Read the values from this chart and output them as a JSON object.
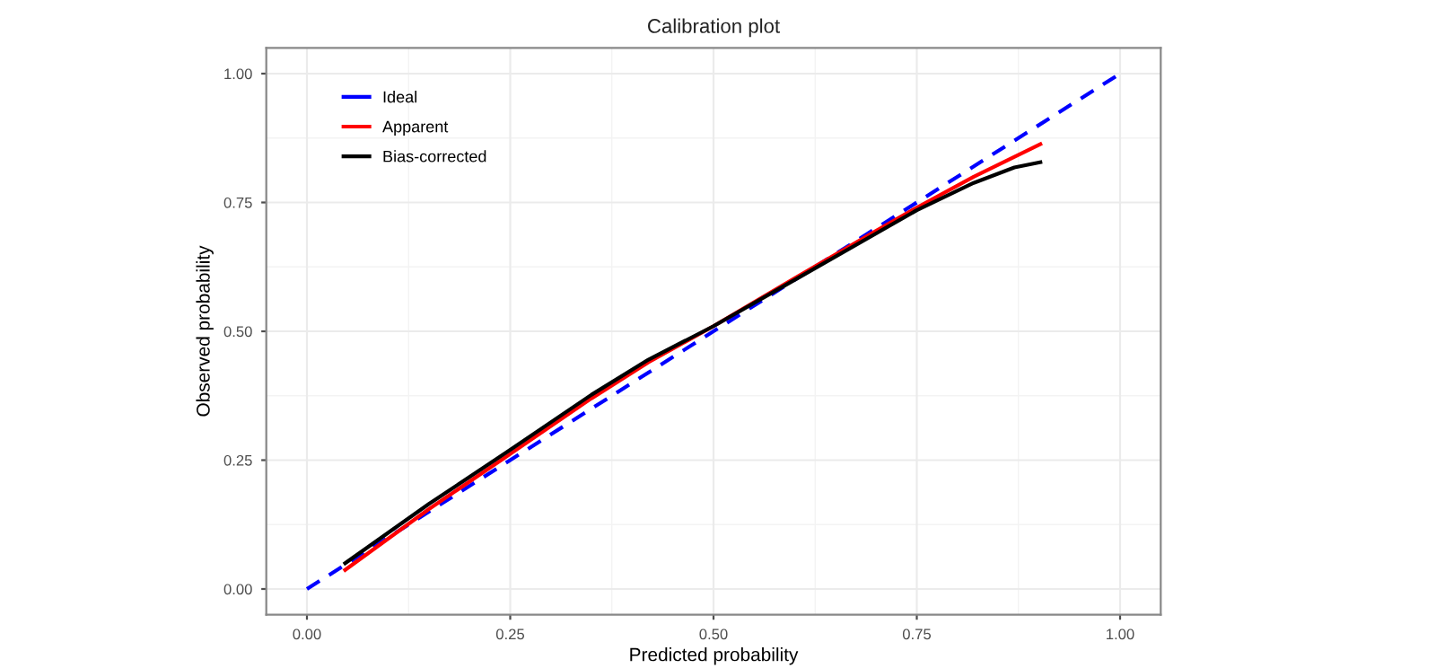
{
  "chart_data": {
    "type": "line",
    "title": "Calibration plot",
    "xlabel": "Predicted probability",
    "ylabel": "Observed probability",
    "xlim": [
      -0.05,
      1.05
    ],
    "ylim": [
      -0.05,
      1.05
    ],
    "xticks": [
      {
        "value": 0,
        "label": "0.00"
      },
      {
        "value": 0.25,
        "label": "0.25"
      },
      {
        "value": 0.5,
        "label": "0.50"
      },
      {
        "value": 0.75,
        "label": "0.75"
      },
      {
        "value": 1,
        "label": "1.00"
      }
    ],
    "yticks": [
      {
        "value": 0,
        "label": "0.00"
      },
      {
        "value": 0.25,
        "label": "0.25"
      },
      {
        "value": 0.5,
        "label": "0.50"
      },
      {
        "value": 0.75,
        "label": "0.75"
      },
      {
        "value": 1,
        "label": "1.00"
      }
    ],
    "grid": true,
    "legend": "top left",
    "series": [
      {
        "name": "Ideal",
        "color": "#0000ff",
        "line_style": "dashed",
        "x": [
          0,
          1
        ],
        "values": [
          0,
          1
        ]
      },
      {
        "name": "Apparent",
        "color": "#ff0000",
        "line_style": "solid",
        "x": [
          0.047,
          0.15,
          0.25,
          0.35,
          0.42,
          0.5,
          0.6,
          0.7,
          0.75,
          0.82,
          0.902
        ],
        "values": [
          0.037,
          0.155,
          0.262,
          0.37,
          0.44,
          0.51,
          0.603,
          0.695,
          0.74,
          0.8,
          0.863
        ]
      },
      {
        "name": "Bias-corrected",
        "color": "#000000",
        "line_style": "solid",
        "x": [
          0.047,
          0.15,
          0.25,
          0.35,
          0.42,
          0.5,
          0.6,
          0.7,
          0.75,
          0.82,
          0.87,
          0.902
        ],
        "values": [
          0.05,
          0.165,
          0.27,
          0.377,
          0.445,
          0.51,
          0.6,
          0.69,
          0.735,
          0.788,
          0.818,
          0.828
        ]
      }
    ]
  }
}
